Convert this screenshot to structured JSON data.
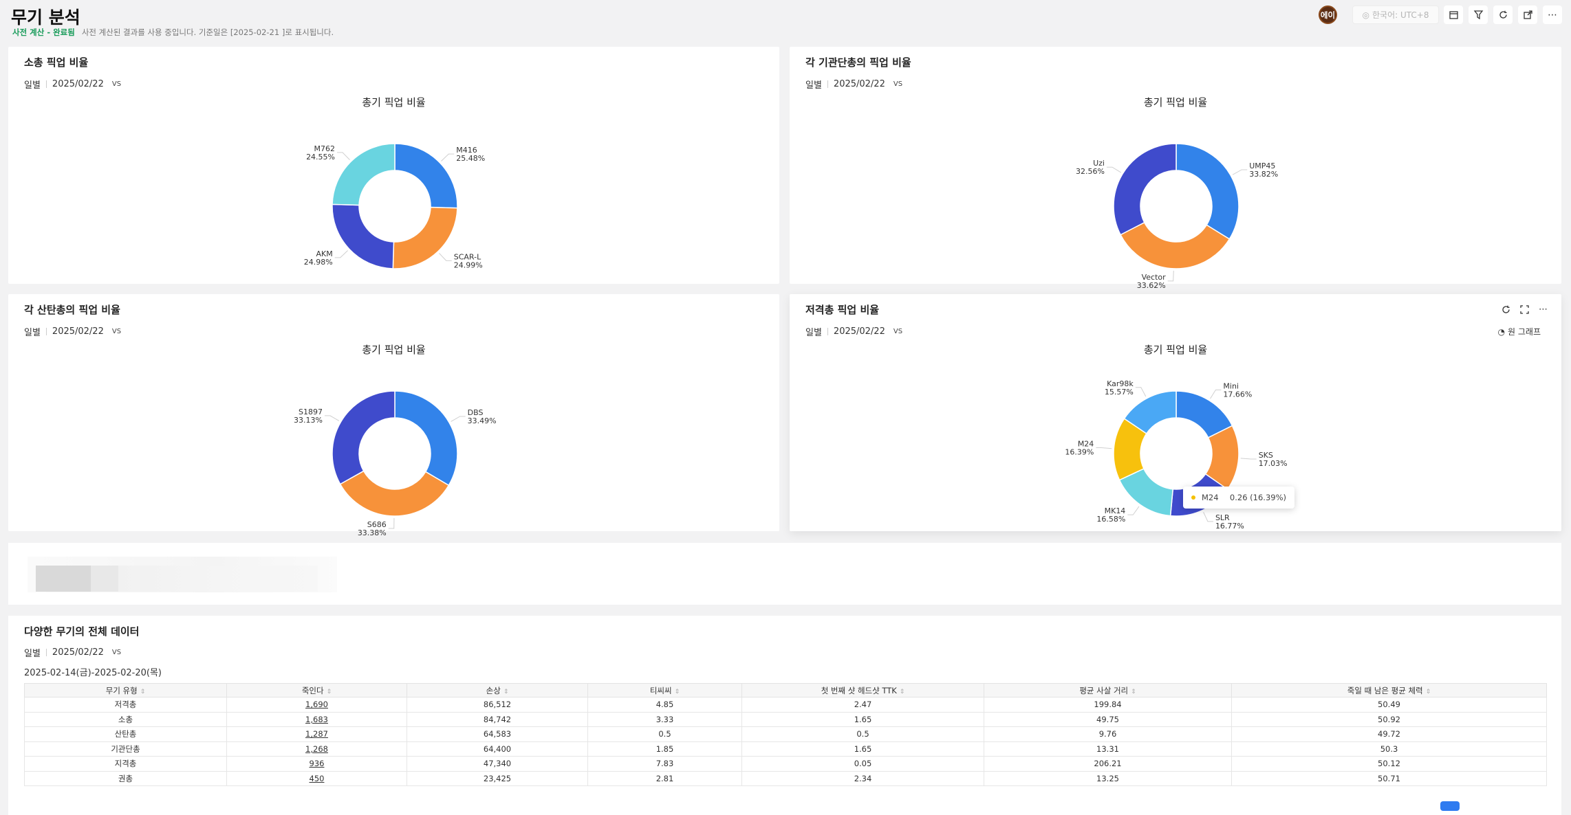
{
  "header": {
    "title": "무기 분석",
    "status": "사전 계산 - 완료됨",
    "note": "사전 계산된 결과를 사용 중입니다. 기준일은 [2025-02-21 ]로 표시됩니다.",
    "avatar": "에이",
    "timezone": "한국어: UTC+8"
  },
  "panels": [
    {
      "title": "소총 픽업 비율",
      "period": "일별",
      "date": "2025/02/22",
      "vs": "VS",
      "chart_title": "총기 픽업 비율"
    },
    {
      "title": "각 기관단총의 픽업 비율",
      "period": "일별",
      "date": "2025/02/22",
      "vs": "VS",
      "chart_title": "총기 픽업 비율"
    },
    {
      "title": "각 산탄총의 픽업 비율",
      "period": "일별",
      "date": "2025/02/22",
      "vs": "VS",
      "chart_title": "총기 픽업 비율"
    },
    {
      "title": "저격총 픽업 비율",
      "period": "일별",
      "date": "2025/02/22",
      "vs": "VS",
      "chart_title": "총기 픽업 비율",
      "pie_type": "원 그래프",
      "tooltip": {
        "name": "M24",
        "value": "0.26 (16.39%)"
      }
    }
  ],
  "chart_data": [
    {
      "type": "pie",
      "title": "총기 픽업 비율",
      "slices": [
        {
          "name": "M416",
          "value": 25.48,
          "color": "#3283ea"
        },
        {
          "name": "SCAR-L",
          "value": 24.99,
          "color": "#f7923a"
        },
        {
          "name": "AKM",
          "value": 24.98,
          "color": "#3f4bcc"
        },
        {
          "name": "M762",
          "value": 24.55,
          "color": "#69d4e0"
        }
      ]
    },
    {
      "type": "pie",
      "title": "총기 픽업 비율",
      "slices": [
        {
          "name": "UMP45",
          "value": 33.82,
          "color": "#3283ea"
        },
        {
          "name": "Vector",
          "value": 33.62,
          "color": "#f7923a"
        },
        {
          "name": "Uzi",
          "value": 32.56,
          "color": "#3f4bcc"
        }
      ]
    },
    {
      "type": "pie",
      "title": "총기 픽업 비율",
      "slices": [
        {
          "name": "DBS",
          "value": 33.49,
          "color": "#3283ea"
        },
        {
          "name": "S686",
          "value": 33.38,
          "color": "#f7923a"
        },
        {
          "name": "S1897",
          "value": 33.13,
          "color": "#3f4bcc"
        }
      ]
    },
    {
      "type": "pie",
      "title": "총기 픽업 비율",
      "slices": [
        {
          "name": "Mini",
          "value": 17.66,
          "color": "#3283ea"
        },
        {
          "name": "SKS",
          "value": 17.03,
          "color": "#f7923a"
        },
        {
          "name": "SLR",
          "value": 16.77,
          "color": "#3f4bcc"
        },
        {
          "name": "MK14",
          "value": 16.58,
          "color": "#69d4e0"
        },
        {
          "name": "M24",
          "value": 16.39,
          "color": "#f7c10d"
        },
        {
          "name": "Kar98k",
          "value": 15.57,
          "color": "#4aa8f5"
        }
      ]
    }
  ],
  "table": {
    "title": "다양한 무기의 전체 데이터",
    "period": "일별",
    "date": "2025/02/22",
    "vs": "VS",
    "range": "2025-02-14(금)-2025-02-20(목)",
    "columns": [
      "무기 유형",
      "죽인다",
      "손상",
      "티씨씨",
      "첫 번째 샷 헤드샷 TTK",
      "평균 사살 거리",
      "죽일 때 남은 평균 체력"
    ],
    "rows": [
      [
        "저격총",
        "1,690",
        "86,512",
        "4.85",
        "2.47",
        "199.84",
        "50.49"
      ],
      [
        "소총",
        "1,683",
        "84,742",
        "3.33",
        "1.65",
        "49.75",
        "50.92"
      ],
      [
        "산탄총",
        "1,287",
        "64,583",
        "0.5",
        "0.5",
        "9.76",
        "49.72"
      ],
      [
        "기관단총",
        "1,268",
        "64,400",
        "1.85",
        "1.65",
        "13.31",
        "50.3"
      ],
      [
        "지격총",
        "936",
        "47,340",
        "7.83",
        "0.05",
        "206.21",
        "50.12"
      ],
      [
        "권총",
        "450",
        "23,425",
        "2.81",
        "2.34",
        "13.25",
        "50.71"
      ]
    ]
  }
}
